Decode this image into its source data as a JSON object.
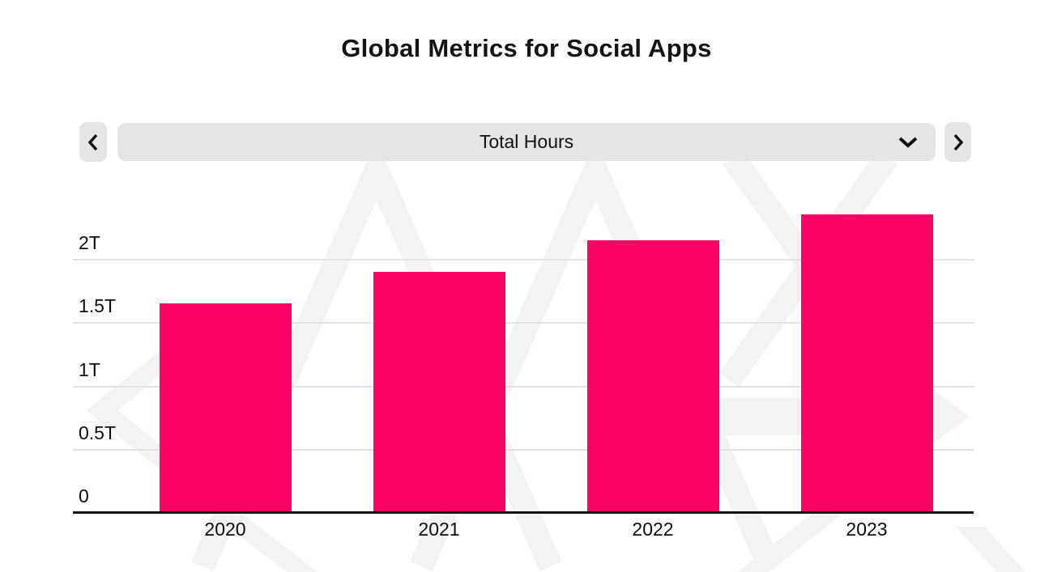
{
  "page": {
    "title": "Global Metrics for Social Apps"
  },
  "controls": {
    "metric_selector_label": "Total Hours",
    "prev_button": "chevron-left",
    "next_button": "chevron-right"
  },
  "colors": {
    "bar": "#FC0366",
    "control_background": "#E5E5E5",
    "gridline": "#E3E3E3",
    "axis": "#111111",
    "watermark": "#F3F3F3",
    "text": "#111111"
  },
  "chart_data": {
    "type": "bar",
    "title": "Global Metrics for Social Apps",
    "metric": "Total Hours",
    "categories": [
      "2020",
      "2021",
      "2022",
      "2023"
    ],
    "values": [
      1.65,
      1.9,
      2.15,
      2.35
    ],
    "unit": "trillion hours",
    "value_suffix": "T",
    "yticks": [
      {
        "label": "0",
        "value": 0
      },
      {
        "label": "0.5T",
        "value": 0.5
      },
      {
        "label": "1T",
        "value": 1
      },
      {
        "label": "1.5T",
        "value": 1.5
      },
      {
        "label": "2T",
        "value": 2
      }
    ],
    "ylim": [
      0,
      2.5
    ],
    "grid": true,
    "legend_position": "none"
  }
}
